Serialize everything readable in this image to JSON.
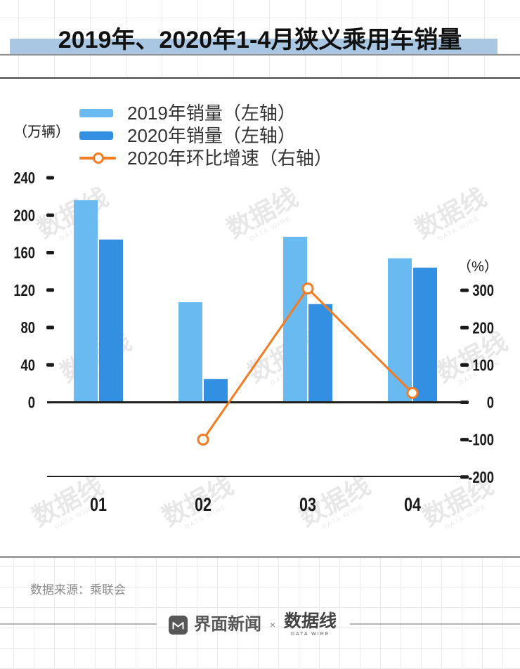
{
  "title": {
    "text": "2019年、2020年1-4月狭义乘用车销量",
    "highlight_color": "#a9c7e3"
  },
  "legend": [
    {
      "label": "2019年销量（左轴）",
      "color": "#69baf0",
      "type": "bar"
    },
    {
      "label": "2020年销量（左轴）",
      "color": "#328fe2",
      "type": "bar"
    },
    {
      "label": "2020年环比增速（右轴）",
      "color": "#f57b22",
      "type": "line"
    }
  ],
  "chart_data": {
    "type": "bar+line",
    "categories": [
      "01",
      "02",
      "03",
      "04"
    ],
    "series": [
      {
        "name": "2019年销量（左轴）",
        "type": "bar",
        "axis": "left",
        "color": "#69baf0",
        "values": [
          216,
          107,
          177,
          154
        ]
      },
      {
        "name": "2020年销量（左轴）",
        "type": "bar",
        "axis": "left",
        "color": "#328fe2",
        "values": [
          174,
          25,
          105,
          144
        ]
      },
      {
        "name": "2020年环比增速（右轴）",
        "type": "line",
        "axis": "right",
        "color": "#f57b22",
        "values": [
          null,
          -100,
          305,
          25
        ]
      }
    ],
    "left_axis": {
      "label": "（万辆）",
      "range": [
        0,
        240
      ],
      "tick_step": 40,
      "ticks": [
        0,
        40,
        80,
        120,
        160,
        200,
        240
      ]
    },
    "right_axis": {
      "label": "（%）",
      "range": [
        -200,
        300
      ],
      "tick_step": 100,
      "ticks": [
        -200,
        -100,
        0,
        100,
        200,
        300
      ]
    },
    "grid": "off",
    "legend_position": "top-left"
  },
  "footer": {
    "source": "数据来源：乘联会",
    "brand_left": "界面新闻",
    "brand_sep": "×",
    "brand_right": "数据线",
    "brand_right_sub": "DATA WIRE"
  },
  "watermark": {
    "text": "数据线",
    "sub": "DATA WIRE"
  }
}
